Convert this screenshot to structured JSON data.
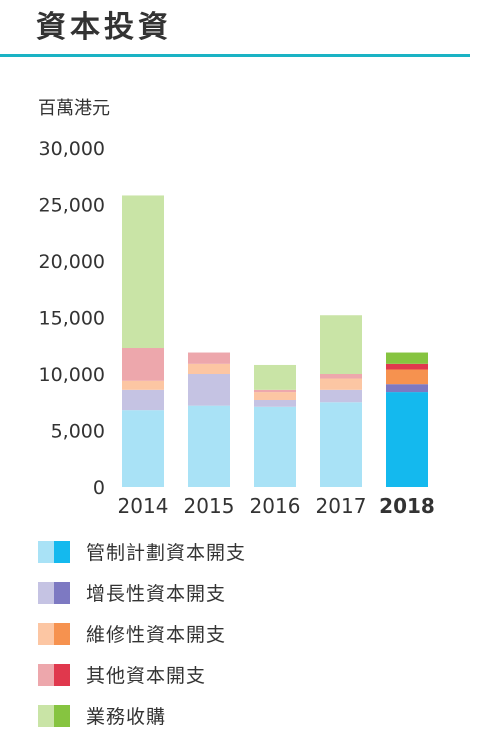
{
  "title": "資本投資",
  "unit_label": "百萬港元",
  "chart_data": {
    "type": "bar",
    "stacked": true,
    "categories": [
      "2014",
      "2015",
      "2016",
      "2017",
      "2018"
    ],
    "highlight_category": "2018",
    "ylim": [
      0,
      30000
    ],
    "yticks": [
      0,
      5000,
      10000,
      15000,
      20000,
      25000,
      30000
    ],
    "ytick_labels": [
      "0",
      "5,000",
      "10,000",
      "15,000",
      "20,000",
      "25,000",
      "30,000"
    ],
    "grid": false,
    "legend_position": "bottom",
    "series": [
      {
        "name": "管制計劃資本開支",
        "values": [
          6800,
          7200,
          7100,
          7500,
          8400
        ],
        "color_light": "#a9e2f6",
        "color_dark": "#14b9ee"
      },
      {
        "name": "增長性資本開支",
        "values": [
          1800,
          2800,
          600,
          1100,
          700
        ],
        "color_light": "#c5c3e3",
        "color_dark": "#7d79c2"
      },
      {
        "name": "維修性資本開支",
        "values": [
          800,
          900,
          700,
          1000,
          1300
        ],
        "color_light": "#fcc6a3",
        "color_dark": "#f6924f"
      },
      {
        "name": "其他資本開支",
        "values": [
          2900,
          1000,
          200,
          400,
          500
        ],
        "color_light": "#eda7ac",
        "color_dark": "#e0384d"
      },
      {
        "name": "業務收購",
        "values": [
          13500,
          0,
          2200,
          5200,
          1000
        ],
        "color_light": "#c9e4a6",
        "color_dark": "#86c440"
      }
    ]
  }
}
